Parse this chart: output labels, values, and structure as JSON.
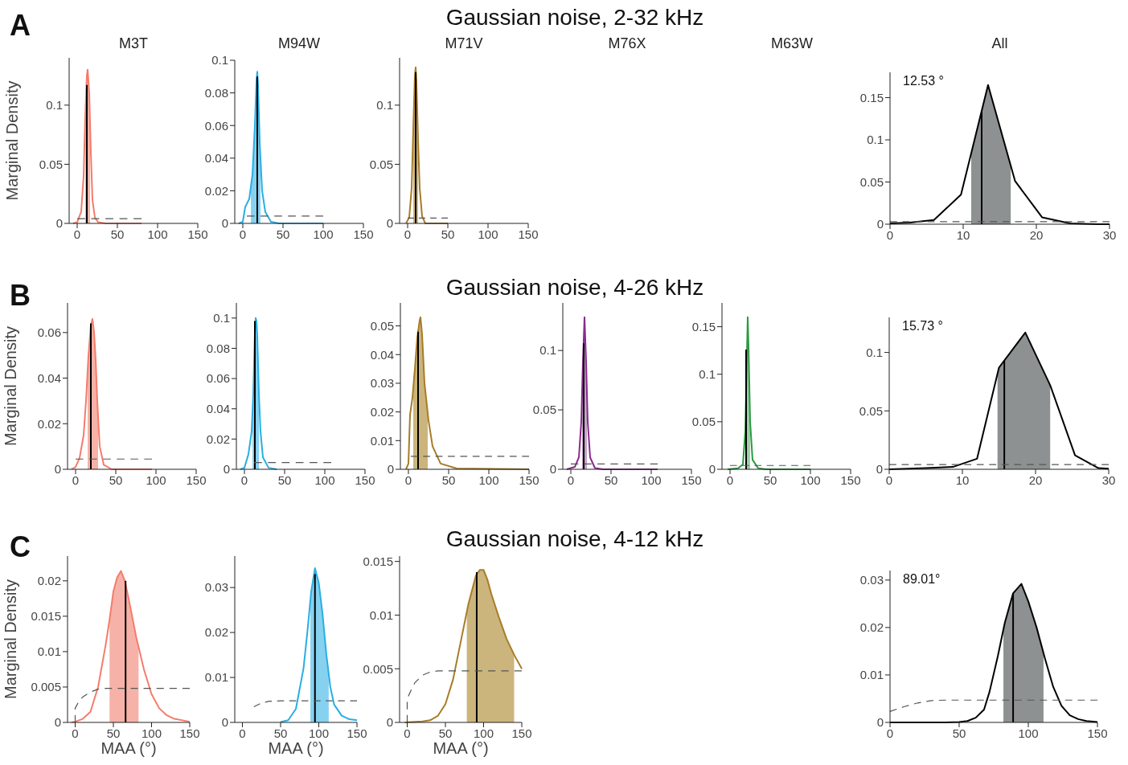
{
  "chart_data": [
    {
      "type": "line",
      "title": "M3T",
      "ylabel": "Marginal Density",
      "annotations": [
        "A",
        "Gaussian noise, 2-32 kHz"
      ],
      "xlim": [
        -10,
        150
      ],
      "xticks": [
        0,
        50,
        100,
        150
      ],
      "ylim": [
        0,
        0.14
      ],
      "yticks": [
        0,
        0.05,
        0.1
      ],
      "series": [
        {
          "type": "area",
          "color": "#f6b2a8",
          "x": [
            10,
            11,
            12,
            13,
            14,
            15,
            16
          ],
          "values": [
            0.09,
            0.11,
            0.125,
            0.13,
            0.125,
            0.11,
            0.085
          ]
        },
        {
          "type": "line",
          "color": "#f47c6b",
          "x": [
            -5,
            0,
            5,
            8,
            10,
            12,
            13,
            15,
            17,
            19,
            22,
            26,
            35,
            80
          ],
          "values": [
            0,
            0.001,
            0.01,
            0.04,
            0.09,
            0.125,
            0.13,
            0.11,
            0.06,
            0.02,
            0.005,
            0.001,
            0,
            0
          ]
        },
        {
          "type": "line",
          "color": "#000000",
          "x": [
            12,
            12
          ],
          "values": [
            0,
            0.117
          ]
        },
        {
          "type": "line",
          "color": "#555555",
          "line_style": "dashed",
          "x": [
            0,
            80
          ],
          "values": [
            0.004,
            0.004
          ]
        }
      ]
    },
    {
      "type": "line",
      "title": "M94W",
      "xlim": [
        -10,
        150
      ],
      "xticks": [
        0,
        50,
        100,
        150
      ],
      "ylim": [
        0,
        0.1
      ],
      "yticks": [
        0,
        0.02,
        0.04,
        0.06,
        0.08,
        0.1
      ],
      "series": [
        {
          "type": "area",
          "color": "#86d1ef",
          "x": [
            10,
            12,
            15,
            17,
            18,
            19,
            21,
            22
          ],
          "values": [
            0.022,
            0.03,
            0.06,
            0.088,
            0.093,
            0.085,
            0.05,
            0.035
          ]
        },
        {
          "type": "line",
          "color": "#29aee3",
          "x": [
            -5,
            0,
            3,
            8,
            12,
            15,
            17,
            18,
            19,
            21,
            24,
            28,
            35,
            45,
            100
          ],
          "values": [
            0,
            0.001,
            0.01,
            0.015,
            0.03,
            0.06,
            0.088,
            0.093,
            0.085,
            0.05,
            0.02,
            0.007,
            0.001,
            0,
            0
          ]
        },
        {
          "type": "line",
          "color": "#000000",
          "x": [
            18,
            18
          ],
          "values": [
            0,
            0.09
          ]
        },
        {
          "type": "line",
          "color": "#555555",
          "line_style": "dashed",
          "x": [
            5,
            100
          ],
          "values": [
            0.0045,
            0.0045
          ]
        }
      ]
    },
    {
      "type": "line",
      "title": "M71V",
      "xlim": [
        -10,
        150
      ],
      "xticks": [
        0,
        50,
        100,
        150
      ],
      "ylim": [
        0,
        0.14
      ],
      "yticks": [
        0,
        0.05,
        0.1
      ],
      "series": [
        {
          "type": "area",
          "color": "#cbb57c",
          "x": [
            7,
            9,
            10,
            11,
            13
          ],
          "values": [
            0.08,
            0.125,
            0.132,
            0.12,
            0.07
          ]
        },
        {
          "type": "line",
          "color": "#a77c29",
          "x": [
            -2,
            2,
            5,
            7,
            9,
            10,
            11,
            13,
            15,
            18,
            22,
            50
          ],
          "values": [
            0,
            0.005,
            0.03,
            0.08,
            0.125,
            0.132,
            0.12,
            0.07,
            0.03,
            0.006,
            0,
            0
          ]
        },
        {
          "type": "line",
          "color": "#000000",
          "x": [
            10,
            10
          ],
          "values": [
            0,
            0.128
          ]
        },
        {
          "type": "line",
          "color": "#555555",
          "line_style": "dashed",
          "x": [
            0,
            50
          ],
          "values": [
            0.0045,
            0.0045
          ]
        }
      ]
    },
    {
      "type": "other",
      "title": "M76X"
    },
    {
      "type": "other",
      "title": "M63W"
    },
    {
      "type": "line",
      "title": "All",
      "annotations": [
        "12.53 °"
      ],
      "xlim": [
        0,
        30
      ],
      "xticks": [
        0,
        10,
        20,
        30
      ],
      "ylim": [
        0,
        0.18
      ],
      "yticks": [
        0,
        0.05,
        0.1,
        0.15
      ],
      "series": [
        {
          "type": "area",
          "color": "#8e9192",
          "x": [
            11.1,
            13.4,
            16.5
          ],
          "values": [
            0.084,
            0.165,
            0.069
          ]
        },
        {
          "type": "line",
          "color": "#000000",
          "x": [
            0,
            2.7,
            6,
            9.7,
            13.4,
            17.1,
            20.8,
            24.6,
            28.3,
            30
          ],
          "values": [
            0.001,
            0.002,
            0.005,
            0.035,
            0.165,
            0.051,
            0.008,
            0.001,
            0,
            0
          ]
        },
        {
          "type": "line",
          "color": "#000000",
          "x": [
            12.53,
            12.53
          ],
          "values": [
            0,
            0.134
          ]
        },
        {
          "type": "line",
          "color": "#555555",
          "line_style": "dashed",
          "x": [
            0,
            30
          ],
          "values": [
            0.003,
            0.003
          ]
        }
      ]
    },
    {
      "type": "line",
      "ylabel": "Marginal Density",
      "annotations": [
        "B",
        "Gaussian noise, 4-26 kHz"
      ],
      "xlim": [
        -10,
        150
      ],
      "xticks": [
        0,
        50,
        100,
        150
      ],
      "ylim": [
        0,
        0.073
      ],
      "yticks": [
        0,
        0.02,
        0.04,
        0.06
      ],
      "series": [
        {
          "type": "area",
          "color": "#f6b2a8",
          "x": [
            15,
            16,
            19,
            21,
            23,
            25,
            27,
            28
          ],
          "values": [
            0.042,
            0.05,
            0.063,
            0.066,
            0.06,
            0.048,
            0.03,
            0.02
          ]
        },
        {
          "type": "line",
          "color": "#f47c6b",
          "x": [
            -5,
            0,
            5,
            10,
            13,
            16,
            19,
            21,
            23,
            25,
            27,
            30,
            35,
            45,
            95
          ],
          "values": [
            0,
            0.001,
            0.005,
            0.015,
            0.03,
            0.05,
            0.063,
            0.066,
            0.06,
            0.048,
            0.03,
            0.01,
            0.002,
            0,
            0
          ]
        },
        {
          "type": "line",
          "color": "#000000",
          "x": [
            19,
            19
          ],
          "values": [
            0,
            0.064
          ]
        },
        {
          "type": "line",
          "color": "#555555",
          "line_style": "dashed",
          "x": [
            0,
            95
          ],
          "values": [
            0.0045,
            0.0045
          ]
        }
      ]
    },
    {
      "type": "line",
      "xlim": [
        -10,
        150
      ],
      "xticks": [
        0,
        50,
        100,
        150
      ],
      "ylim": [
        0,
        0.11
      ],
      "yticks": [
        0,
        0.02,
        0.04,
        0.06,
        0.08,
        0.1
      ],
      "series": [
        {
          "type": "area",
          "color": "#86d1ef",
          "x": [
            10,
            11,
            13,
            14,
            15,
            16,
            18
          ],
          "values": [
            0.035,
            0.05,
            0.09,
            0.1,
            0.098,
            0.088,
            0.05
          ]
        },
        {
          "type": "line",
          "color": "#29aee3",
          "x": [
            -5,
            0,
            5,
            9,
            11,
            13,
            14,
            15,
            16,
            18,
            20,
            23,
            30,
            40
          ],
          "values": [
            0,
            0.001,
            0.01,
            0.025,
            0.05,
            0.09,
            0.1,
            0.098,
            0.088,
            0.05,
            0.025,
            0.008,
            0.001,
            0
          ]
        },
        {
          "type": "line",
          "color": "#000000",
          "x": [
            13,
            13
          ],
          "values": [
            0,
            0.098
          ]
        },
        {
          "type": "line",
          "color": "#555555",
          "line_style": "dashed",
          "x": [
            12,
            108
          ],
          "values": [
            0.0045,
            0.0045
          ]
        }
      ]
    },
    {
      "type": "line",
      "xlim": [
        -10,
        150
      ],
      "xticks": [
        0,
        50,
        100,
        150
      ],
      "ylim": [
        0,
        0.058
      ],
      "yticks": [
        0,
        0.01,
        0.02,
        0.03,
        0.04,
        0.05
      ],
      "series": [
        {
          "type": "area",
          "color": "#cbb57c",
          "x": [
            6,
            8,
            11,
            14,
            15,
            17,
            20,
            24
          ],
          "values": [
            0.032,
            0.035,
            0.046,
            0.052,
            0.053,
            0.047,
            0.03,
            0.019
          ]
        },
        {
          "type": "line",
          "color": "#a77c29",
          "x": [
            -3,
            0,
            2,
            5,
            8,
            11,
            14,
            15,
            17,
            20,
            25,
            30,
            40,
            60,
            150
          ],
          "values": [
            0,
            0.002,
            0.019,
            0.025,
            0.035,
            0.046,
            0.052,
            0.053,
            0.047,
            0.03,
            0.017,
            0.008,
            0.002,
            0.0003,
            0
          ]
        },
        {
          "type": "line",
          "color": "#000000",
          "x": [
            12,
            12
          ],
          "values": [
            0,
            0.048
          ]
        },
        {
          "type": "line",
          "color": "#555555",
          "line_style": "dashed",
          "x": [
            3,
            150
          ],
          "values": [
            0.0045,
            0.0045
          ]
        }
      ]
    },
    {
      "type": "line",
      "xlim": [
        -10,
        150
      ],
      "xticks": [
        0,
        50,
        100,
        150
      ],
      "ylim": [
        0,
        0.14
      ],
      "yticks": [
        0,
        0.05,
        0.1
      ],
      "series": [
        {
          "type": "area",
          "color": "#c4a6c6",
          "x": [
            14,
            15,
            17,
            19,
            20
          ],
          "values": [
            0.06,
            0.09,
            0.128,
            0.09,
            0.065
          ]
        },
        {
          "type": "line",
          "color": "#8b2a90",
          "x": [
            -5,
            5,
            10,
            13,
            15,
            17,
            19,
            21,
            24,
            30,
            40,
            108
          ],
          "values": [
            0,
            0.002,
            0.01,
            0.04,
            0.09,
            0.128,
            0.09,
            0.04,
            0.01,
            0.001,
            0,
            0
          ]
        },
        {
          "type": "line",
          "color": "#000000",
          "x": [
            16,
            16
          ],
          "values": [
            0,
            0.106
          ]
        },
        {
          "type": "line",
          "color": "#555555",
          "line_style": "dashed",
          "x": [
            0,
            108
          ],
          "values": [
            0.0045,
            0.0045
          ]
        }
      ]
    },
    {
      "type": "line",
      "xlim": [
        -10,
        150
      ],
      "xticks": [
        0,
        50,
        100,
        150
      ],
      "ylim": [
        0,
        0.175
      ],
      "yticks": [
        0,
        0.05,
        0.1,
        0.15
      ],
      "series": [
        {
          "type": "area",
          "color": "#9ed2a6",
          "x": [
            19,
            21,
            22,
            23,
            25
          ],
          "values": [
            0.04,
            0.12,
            0.16,
            0.13,
            0.05
          ]
        },
        {
          "type": "line",
          "color": "#2a9b43",
          "x": [
            -3,
            10,
            16,
            19,
            21,
            22,
            23,
            25,
            28,
            35,
            45,
            100
          ],
          "values": [
            0,
            0.001,
            0.005,
            0.04,
            0.12,
            0.16,
            0.13,
            0.05,
            0.01,
            0.001,
            0,
            0
          ]
        },
        {
          "type": "line",
          "color": "#000000",
          "x": [
            20,
            20
          ],
          "values": [
            0,
            0.126
          ]
        },
        {
          "type": "line",
          "color": "#555555",
          "line_style": "dashed",
          "x": [
            0,
            100
          ],
          "values": [
            0.004,
            0.004
          ]
        }
      ]
    },
    {
      "type": "line",
      "annotations": [
        "15.73 °"
      ],
      "xlim": [
        0,
        30
      ],
      "xticks": [
        0,
        10,
        20,
        30
      ],
      "ylim": [
        0,
        0.13
      ],
      "yticks": [
        0,
        0.05,
        0.1
      ],
      "series": [
        {
          "type": "area",
          "color": "#8e9192",
          "x": [
            14.8,
            15,
            18.6,
            22
          ],
          "values": [
            0.082,
            0.087,
            0.117,
            0.072
          ]
        },
        {
          "type": "line",
          "color": "#000000",
          "x": [
            0,
            5,
            8.7,
            12,
            15,
            18.6,
            22,
            25.4,
            28.6,
            30
          ],
          "values": [
            0,
            0.001,
            0.002,
            0.009,
            0.087,
            0.117,
            0.072,
            0.012,
            0.001,
            0.0005
          ]
        },
        {
          "type": "line",
          "color": "#000000",
          "x": [
            15.73,
            15.73
          ],
          "values": [
            0,
            0.093
          ]
        },
        {
          "type": "line",
          "color": "#555555",
          "line_style": "dashed",
          "x": [
            0,
            30
          ],
          "values": [
            0.004,
            0.004
          ]
        }
      ]
    },
    {
      "type": "line",
      "ylabel": "Marginal Density",
      "xlabel": "MAA (°)",
      "annotations": [
        "C",
        "Gaussian noise, 4-12 kHz"
      ],
      "xlim": [
        -10,
        150
      ],
      "xticks": [
        0,
        50,
        100,
        150
      ],
      "ylim": [
        0,
        0.0235
      ],
      "yticks": [
        0,
        0.005,
        0.01,
        0.015,
        0.02
      ],
      "series": [
        {
          "type": "area",
          "color": "#f6b2a8",
          "x": [
            45,
            50,
            55,
            60,
            65,
            70,
            80,
            83
          ],
          "values": [
            0.0145,
            0.0185,
            0.0205,
            0.0214,
            0.02,
            0.0175,
            0.012,
            0.0105
          ]
        },
        {
          "type": "line",
          "color": "#f47c6b",
          "x": [
            -5,
            0,
            10,
            20,
            30,
            40,
            45,
            50,
            55,
            60,
            65,
            70,
            80,
            90,
            100,
            110,
            120,
            130,
            150
          ],
          "values": [
            0,
            0.0001,
            0.0005,
            0.0015,
            0.005,
            0.011,
            0.0145,
            0.0185,
            0.0205,
            0.0214,
            0.02,
            0.0175,
            0.012,
            0.0075,
            0.004,
            0.002,
            0.001,
            0.0005,
            0.0001
          ]
        },
        {
          "type": "line",
          "color": "#000000",
          "x": [
            66,
            66
          ],
          "values": [
            0,
            0.02
          ]
        },
        {
          "type": "line",
          "color": "#555555",
          "line_style": "dashed",
          "x": [
            0,
            0,
            5,
            10,
            20,
            30,
            40,
            150
          ],
          "values": [
            0,
            0.002,
            0.003,
            0.0036,
            0.0043,
            0.0047,
            0.0048,
            0.0048
          ]
        }
      ]
    },
    {
      "type": "line",
      "xlabel": "MAA (°)",
      "xlim": [
        -10,
        150
      ],
      "xticks": [
        0,
        50,
        100,
        150
      ],
      "ylim": [
        0,
        0.037
      ],
      "yticks": [
        0,
        0.01,
        0.02,
        0.03
      ],
      "series": [
        {
          "type": "area",
          "color": "#86d1ef",
          "x": [
            89,
            90,
            95,
            100,
            105,
            110,
            113
          ],
          "values": [
            0.027,
            0.029,
            0.0343,
            0.031,
            0.024,
            0.015,
            0.011
          ]
        },
        {
          "type": "line",
          "color": "#29aee3",
          "x": [
            50,
            60,
            70,
            80,
            85,
            90,
            95,
            100,
            105,
            110,
            115,
            120,
            130,
            140,
            150
          ],
          "values": [
            0.0001,
            0.0005,
            0.003,
            0.012,
            0.02,
            0.029,
            0.0343,
            0.031,
            0.024,
            0.015,
            0.008,
            0.004,
            0.0015,
            0.0007,
            0.0005
          ]
        },
        {
          "type": "line",
          "color": "#000000",
          "x": [
            95,
            95
          ],
          "values": [
            0,
            0.033
          ]
        },
        {
          "type": "line",
          "color": "#555555",
          "line_style": "dashed",
          "x": [
            15,
            25,
            35,
            50,
            150
          ],
          "values": [
            0.0035,
            0.0043,
            0.0047,
            0.0048,
            0.0048
          ]
        }
      ]
    },
    {
      "type": "line",
      "xlabel": "MAA (°)",
      "xlim": [
        -10,
        150
      ],
      "xticks": [
        0,
        50,
        100,
        150
      ],
      "ylim": [
        0,
        0.0155
      ],
      "yticks": [
        0,
        0.005,
        0.01,
        0.015
      ],
      "series": [
        {
          "type": "area",
          "color": "#cbb57c",
          "x": [
            78,
            80,
            90,
            95,
            100,
            105,
            110,
            120,
            130,
            140
          ],
          "values": [
            0.0103,
            0.011,
            0.0137,
            0.0142,
            0.0142,
            0.0133,
            0.012,
            0.0098,
            0.0078,
            0.0063
          ]
        },
        {
          "type": "line",
          "color": "#a77c29",
          "x": [
            -3,
            20,
            30,
            40,
            50,
            60,
            70,
            80,
            90,
            95,
            100,
            105,
            110,
            120,
            130,
            140,
            150
          ],
          "values": [
            0,
            0.0001,
            0.0002,
            0.0006,
            0.0017,
            0.004,
            0.0075,
            0.011,
            0.0137,
            0.0142,
            0.0142,
            0.0133,
            0.012,
            0.0098,
            0.0078,
            0.0063,
            0.005
          ]
        },
        {
          "type": "line",
          "color": "#000000",
          "x": [
            91,
            91
          ],
          "values": [
            0,
            0.014
          ]
        },
        {
          "type": "line",
          "color": "#555555",
          "line_style": "dashed",
          "x": [
            0,
            0,
            5,
            10,
            20,
            30,
            40,
            150
          ],
          "values": [
            0,
            0.0022,
            0.003,
            0.0037,
            0.0044,
            0.0047,
            0.0048,
            0.0048
          ]
        }
      ]
    },
    {
      "type": "line",
      "annotations": [
        "89.01°"
      ],
      "xlim": [
        0,
        150
      ],
      "xticks": [
        0,
        50,
        100,
        150
      ],
      "ylim": [
        0,
        0.032
      ],
      "yticks": [
        0,
        0.01,
        0.02,
        0.03
      ],
      "series": [
        {
          "type": "area",
          "color": "#8e9192",
          "x": [
            82,
            83,
            89,
            95,
            100,
            106,
            111
          ],
          "values": [
            0.0198,
            0.021,
            0.0272,
            0.0292,
            0.0255,
            0.02,
            0.0145
          ]
        },
        {
          "type": "line",
          "color": "#000000",
          "x": [
            0,
            40,
            50,
            56,
            62,
            68,
            72,
            78,
            83,
            89,
            95,
            100,
            106,
            112,
            118,
            124,
            130,
            136,
            142,
            150
          ],
          "values": [
            0,
            0,
            0.0001,
            0.0003,
            0.001,
            0.0027,
            0.0065,
            0.014,
            0.021,
            0.0272,
            0.0292,
            0.0255,
            0.02,
            0.0135,
            0.0075,
            0.0035,
            0.0015,
            0.0007,
            0.0003,
            0.0001
          ]
        },
        {
          "type": "line",
          "color": "#000000",
          "x": [
            89.01,
            89.01
          ],
          "values": [
            0,
            0.0272
          ]
        },
        {
          "type": "line",
          "color": "#555555",
          "line_style": "dashed",
          "x": [
            0,
            10,
            20,
            30,
            40,
            150
          ],
          "values": [
            0.0023,
            0.0033,
            0.0041,
            0.0046,
            0.0047,
            0.0047
          ]
        }
      ]
    }
  ]
}
